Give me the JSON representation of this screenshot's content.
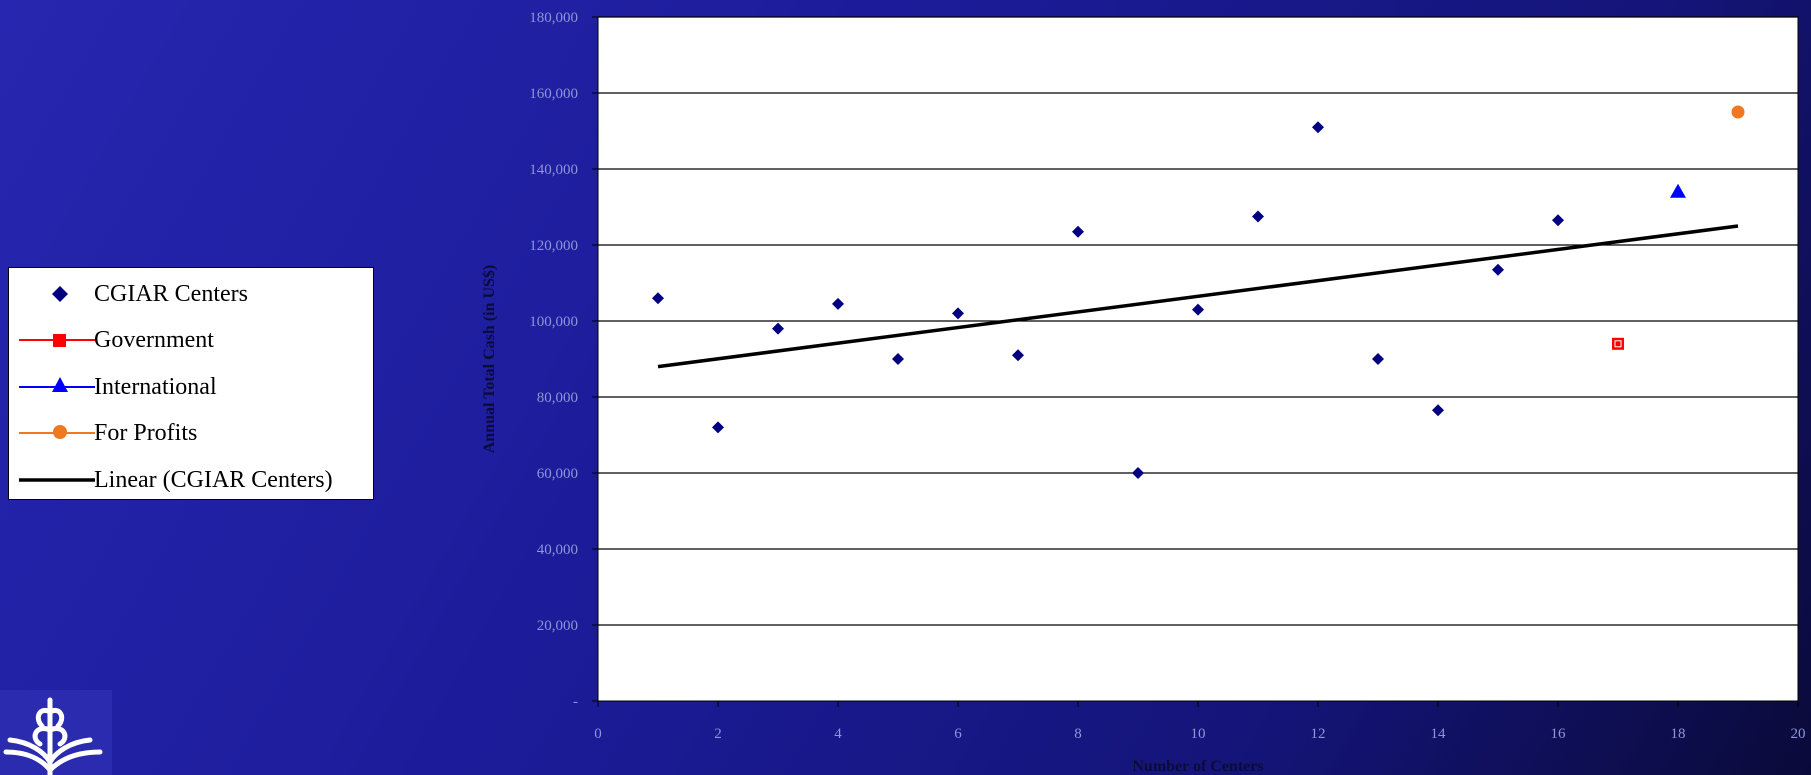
{
  "chart_data": {
    "type": "scatter",
    "xlabel": "Number of Centers",
    "ylabel": "Annual Total Cash (in US$)",
    "xlim": [
      0,
      20
    ],
    "ylim": [
      0,
      180000
    ],
    "x_ticks": [
      "0",
      "2",
      "4",
      "6",
      "8",
      "10",
      "12",
      "14",
      "16",
      "18",
      "20"
    ],
    "y_ticks": [
      "-",
      "20,000",
      "40,000",
      "60,000",
      "80,000",
      "100,000",
      "120,000",
      "140,000",
      "160,000",
      "180,000"
    ],
    "grid": "horizontal",
    "legend_position": "left",
    "series": [
      {
        "name": "CGIAR Centers",
        "marker": "diamond",
        "color": "#000080",
        "points": [
          [
            1,
            106000
          ],
          [
            2,
            72000
          ],
          [
            3,
            98000
          ],
          [
            4,
            104500
          ],
          [
            5,
            90000
          ],
          [
            6,
            102000
          ],
          [
            7,
            91000
          ],
          [
            8,
            123500
          ],
          [
            9,
            60000
          ],
          [
            10,
            103000
          ],
          [
            11,
            127500
          ],
          [
            12,
            151000
          ],
          [
            13,
            90000
          ],
          [
            14,
            76500
          ],
          [
            15,
            113500
          ],
          [
            16,
            126500
          ]
        ]
      },
      {
        "name": "Government",
        "marker": "square",
        "color": "#ff0000",
        "points": [
          [
            17,
            94000
          ]
        ]
      },
      {
        "name": "International",
        "marker": "triangle",
        "color": "#0000ff",
        "points": [
          [
            18,
            134000
          ]
        ]
      },
      {
        "name": "For Profits",
        "marker": "circle",
        "color": "#f07820",
        "points": [
          [
            19,
            155000
          ]
        ]
      },
      {
        "name": "Linear (CGIAR Centers)",
        "marker": "line",
        "color": "#000000",
        "points": [
          [
            1,
            88000
          ],
          [
            19,
            125000
          ]
        ]
      }
    ]
  }
}
